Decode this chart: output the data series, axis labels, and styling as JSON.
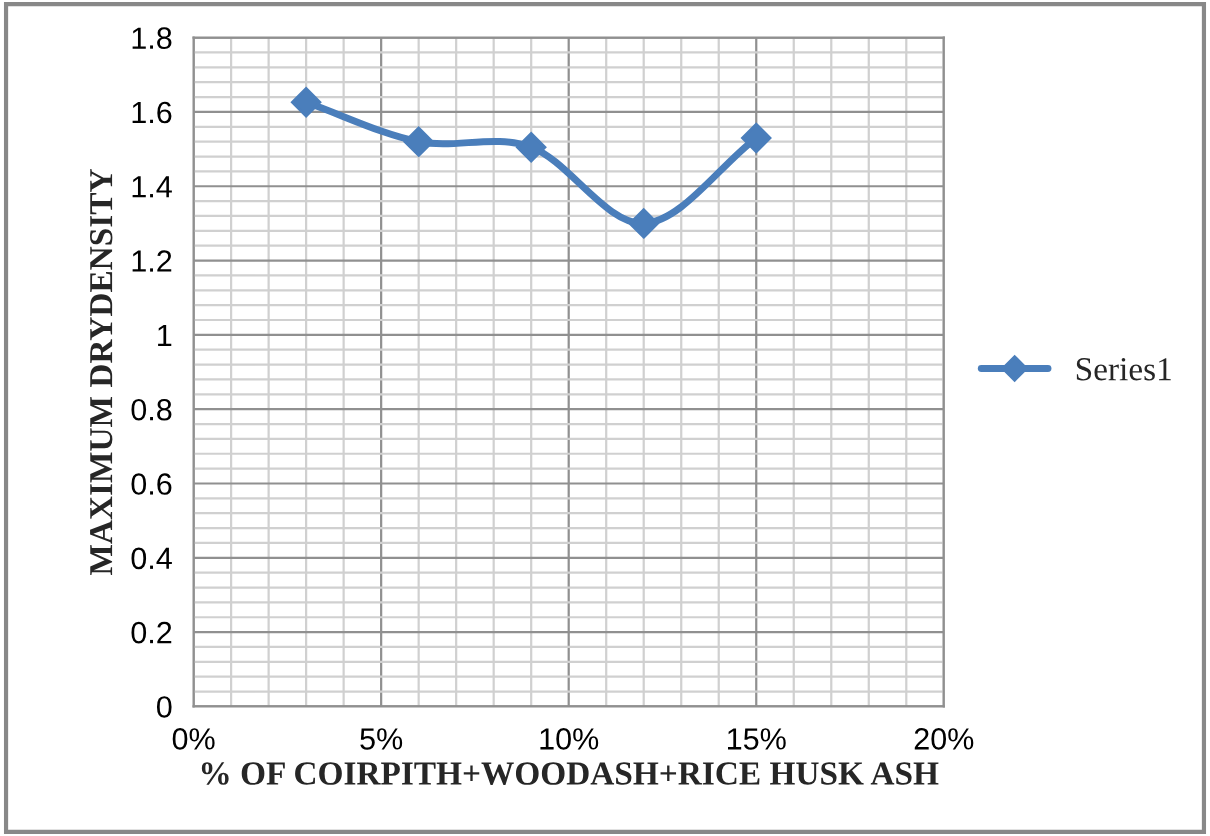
{
  "chart_data": {
    "type": "line",
    "xlabel": "% OF COIRPITH+WOODASH+RICE HUSK ASH",
    "ylabel": "MAXIMUM DRYDENSITY",
    "x": [
      3,
      6,
      9,
      12,
      15
    ],
    "series": [
      {
        "name": "Series1",
        "color": "#4a7ebb",
        "values": [
          1.626,
          1.52,
          1.505,
          1.3,
          1.53
        ]
      }
    ],
    "xlim": [
      0,
      20
    ],
    "xticks": [
      {
        "value": 0,
        "label": "0%"
      },
      {
        "value": 5,
        "label": "5%"
      },
      {
        "value": 10,
        "label": "10%"
      },
      {
        "value": 15,
        "label": "15%"
      },
      {
        "value": 20,
        "label": "20%"
      }
    ],
    "ylim": [
      0,
      1.8
    ],
    "yticks": [
      0,
      0.2,
      0.4,
      0.6,
      0.8,
      1,
      1.2,
      1.4,
      1.6,
      1.8
    ],
    "grid": true,
    "legend": "right",
    "marker": "diamond",
    "line_style": "solid"
  }
}
